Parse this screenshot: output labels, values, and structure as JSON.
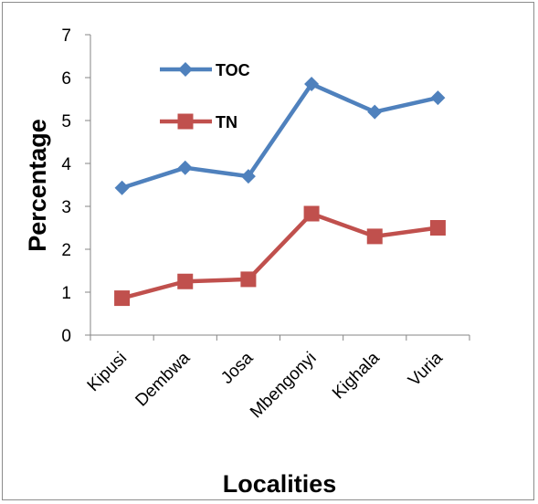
{
  "chart_data": {
    "type": "line",
    "title": "",
    "xlabel": "Localities",
    "ylabel": "Percentage",
    "categories": [
      "Kipusi",
      "Dembwa",
      "Josa",
      "Mbengonyi",
      "Kighala",
      "Vuria"
    ],
    "ylim": [
      0,
      7
    ],
    "yticks": [
      "0",
      "1",
      "2",
      "3",
      "4",
      "5",
      "6",
      "7"
    ],
    "grid": false,
    "legend_position": "top-left inside",
    "series": [
      {
        "name": "TOC",
        "color": "#4f81bd",
        "marker": "diamond",
        "values": [
          3.43,
          3.9,
          3.7,
          5.85,
          5.2,
          5.53
        ]
      },
      {
        "name": "TN",
        "color": "#c0504d",
        "marker": "square",
        "values": [
          0.86,
          1.25,
          1.3,
          2.83,
          2.3,
          2.5
        ]
      }
    ]
  }
}
